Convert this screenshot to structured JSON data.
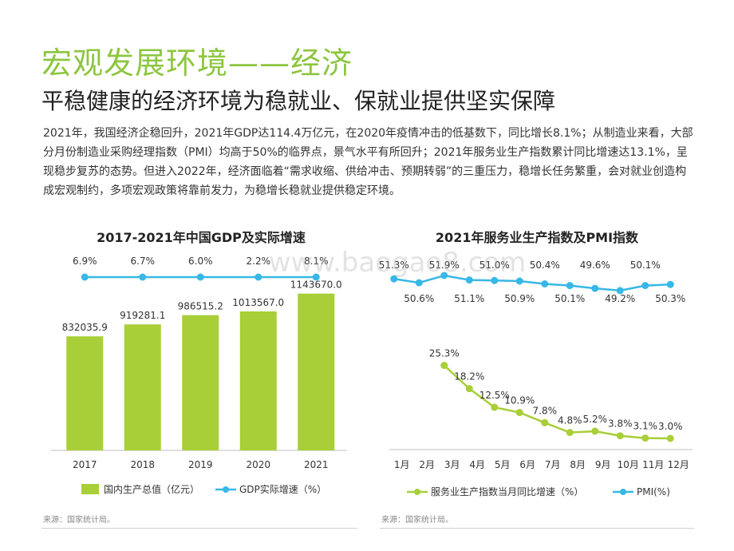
{
  "header": {
    "title": "宏观发展环境——经济",
    "subtitle": "平稳健康的经济环境为稳就业、保就业提供坚实保障",
    "paragraph": "2021年，我国经济企稳回升，2021年GDP达114.4万亿元，在2020年疫情冲击的低基数下，同比增长8.1%；从制造业来看，大部分月份制造业采购经理指数（PMI）均高于50%的临界点，景气水平有所回升；2021年服务业生产指数累计同比增速达13.1%，呈现稳步复苏的态势。但进入2022年，经济面临着“需求收缩、供给冲击、预期转弱”的三重压力，稳增长任务繁重，会对就业创造构成宏观制约，多项宏观政策将靠前发力，为稳增长稳就业提供稳定环境。"
  },
  "chart_data": [
    {
      "type": "bar",
      "title": "2017-2021年中国GDP及实际增速",
      "categories": [
        "2017",
        "2018",
        "2019",
        "2020",
        "2021"
      ],
      "series": [
        {
          "name": "国内生产总值（亿元）",
          "type": "bar",
          "values": [
            832035.9,
            919281.1,
            986515.2,
            1013567.0,
            1143670.0
          ],
          "value_labels": [
            "832035.9",
            "919281.1",
            "986515.2",
            "1013567.0",
            "1143670.0"
          ]
        },
        {
          "name": "GDP实际增速（%）",
          "type": "line",
          "values": [
            6.9,
            6.7,
            6.0,
            2.2,
            8.1
          ],
          "value_labels": [
            "6.9%",
            "6.7%",
            "6.0%",
            "2.2%",
            "8.1%"
          ]
        }
      ],
      "colors": {
        "bar": "#a8cf38",
        "line": "#37b8e6"
      },
      "legend_position": "bottom",
      "grid": false
    },
    {
      "type": "line",
      "title": "2021年服务业生产指数及PMI指数",
      "categories": [
        "1月",
        "2月",
        "3月",
        "4月",
        "5月",
        "6月",
        "7月",
        "8月",
        "9月",
        "10月",
        "11月",
        "12月"
      ],
      "series": [
        {
          "name": "PMI(%)",
          "values": [
            51.3,
            50.6,
            51.9,
            51.1,
            51.0,
            50.9,
            50.4,
            50.1,
            49.6,
            49.2,
            50.1,
            50.3
          ],
          "value_labels": [
            "51.3%",
            "50.6%",
            "51.9%",
            "51.1%",
            "51.0%",
            "50.9%",
            "50.4%",
            "50.1%",
            "49.6%",
            "49.2%",
            "50.1%",
            "50.3%"
          ]
        },
        {
          "name": "服务业生产指数当月同比增速（%）",
          "values": [
            null,
            null,
            25.3,
            18.2,
            12.5,
            10.9,
            7.8,
            4.8,
            5.2,
            3.8,
            3.1,
            3.0
          ],
          "value_labels": [
            "",
            "",
            "25.3%",
            "18.2%",
            "12.5%",
            "10.9%",
            "7.8%",
            "4.8%",
            "5.2%",
            "3.8%",
            "3.1%",
            "3.0%"
          ]
        }
      ],
      "colors": {
        "pmi": "#37b8e6",
        "service": "#a8cf38"
      },
      "legend_position": "bottom",
      "grid": false
    }
  ],
  "watermark": "www.baogao8.com",
  "footer": {
    "source_left": "来源：国家统计局。",
    "source_right": "来源：国家统计局。"
  }
}
